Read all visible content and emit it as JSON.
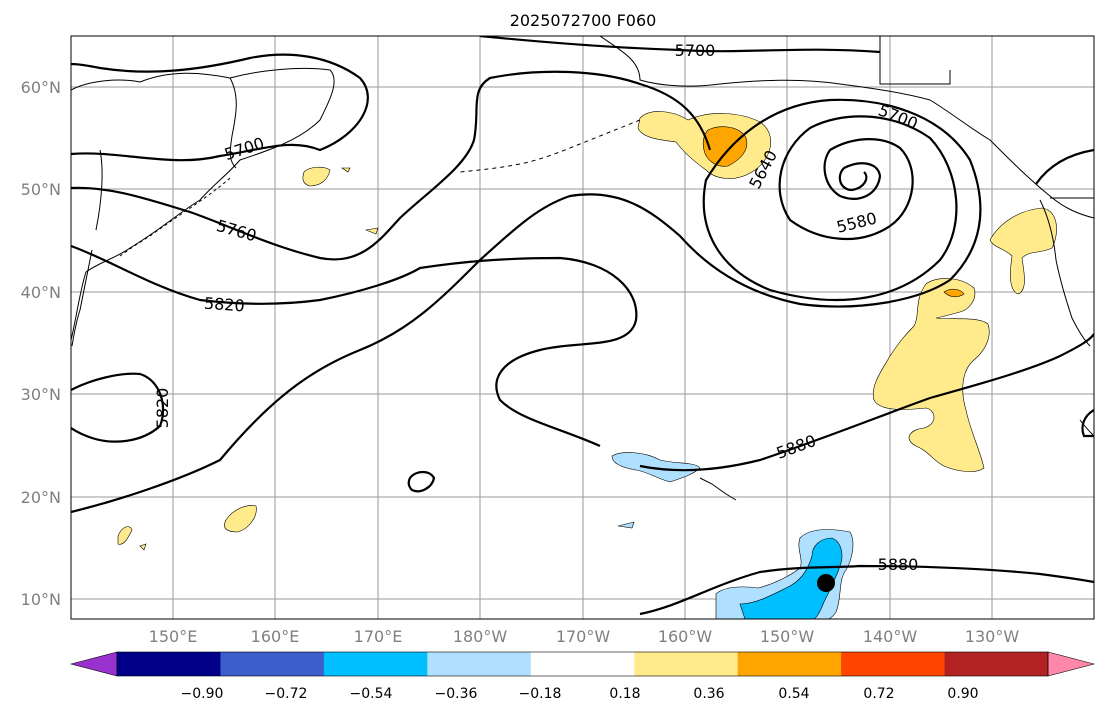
{
  "title": "2025072700 F060",
  "lat_labels": [
    "60°N",
    "50°N",
    "40°N",
    "30°N",
    "20°N",
    "10°N"
  ],
  "lon_labels": [
    "150°E",
    "160°E",
    "170°E",
    "180°W",
    "170°W",
    "160°W",
    "150°W",
    "140°W",
    "130°W"
  ],
  "contour_labels": [
    "5700",
    "5700",
    "5700",
    "5760",
    "5820",
    "5820",
    "5640",
    "5580",
    "5880",
    "5880"
  ],
  "colorbar": {
    "tick_labels": [
      "−0.90",
      "−0.72",
      "−0.54",
      "−0.36",
      "−0.18",
      "0.18",
      "0.36",
      "0.54",
      "0.72",
      "0.90"
    ],
    "colors": [
      "#9932CC",
      "#00008B",
      "#3A5FCD",
      "#00BFFF",
      "#B0E0FF",
      "#FFFFFF",
      "#FFEB8B",
      "#FFA500",
      "#FF4500",
      "#B22222",
      "#FF88AA"
    ]
  }
}
